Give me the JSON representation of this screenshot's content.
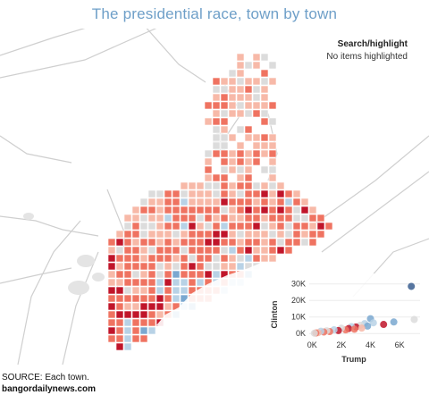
{
  "title": "The presidential race, town by town",
  "search": {
    "label": "Search/highlight",
    "value": "No items highlighted"
  },
  "colors": {
    "trump_strong": "#c0152a",
    "trump_mid": "#ef7361",
    "trump_light": "#f7b9a8",
    "neutral": "#dcdcdc",
    "clinton_light": "#b8d2e6",
    "clinton_mid": "#7aa8d0",
    "clinton_strong": "#3a5e8f",
    "title": "#6e9fc8"
  },
  "chart_data": {
    "type": "scatter",
    "xlabel": "Trump",
    "ylabel": "Clinton",
    "x_ticks": [
      "0K",
      "2K",
      "4K",
      "6K"
    ],
    "y_ticks": [
      "0K",
      "10K",
      "20K",
      "30K"
    ],
    "xlim": [
      -200,
      7400
    ],
    "ylim": [
      -1500,
      32000
    ],
    "points": [
      {
        "x": 6800,
        "y": 28500,
        "c": "clinton_strong"
      },
      {
        "x": 7000,
        "y": 8500,
        "c": "neutral"
      },
      {
        "x": 5600,
        "y": 7000,
        "c": "clinton_mid"
      },
      {
        "x": 4900,
        "y": 5500,
        "c": "trump_strong"
      },
      {
        "x": 4000,
        "y": 9000,
        "c": "clinton_mid"
      },
      {
        "x": 4200,
        "y": 6500,
        "c": "clinton_light"
      },
      {
        "x": 3600,
        "y": 6000,
        "c": "clinton_light"
      },
      {
        "x": 3300,
        "y": 5000,
        "c": "neutral"
      },
      {
        "x": 3000,
        "y": 4000,
        "c": "trump_strong"
      },
      {
        "x": 2700,
        "y": 4200,
        "c": "clinton_light"
      },
      {
        "x": 2500,
        "y": 3000,
        "c": "trump_strong"
      },
      {
        "x": 2300,
        "y": 2200,
        "c": "trump_mid"
      },
      {
        "x": 2000,
        "y": 3200,
        "c": "neutral"
      },
      {
        "x": 1800,
        "y": 1800,
        "c": "trump_strong"
      },
      {
        "x": 1500,
        "y": 2300,
        "c": "clinton_light"
      },
      {
        "x": 1200,
        "y": 1200,
        "c": "trump_mid"
      },
      {
        "x": 1000,
        "y": 1700,
        "c": "neutral"
      },
      {
        "x": 800,
        "y": 900,
        "c": "trump_mid"
      },
      {
        "x": 600,
        "y": 1400,
        "c": "clinton_light"
      },
      {
        "x": 400,
        "y": 500,
        "c": "trump_light"
      },
      {
        "x": 250,
        "y": 300,
        "c": "trump_mid"
      },
      {
        "x": 150,
        "y": 200,
        "c": "neutral"
      },
      {
        "x": 3800,
        "y": 4500,
        "c": "clinton_mid"
      },
      {
        "x": 2900,
        "y": 2600,
        "c": "trump_mid"
      },
      {
        "x": 3400,
        "y": 3300,
        "c": "trump_light"
      }
    ]
  },
  "footer": {
    "source": "SOURCE: Each town.",
    "site": "bangordailynews.com"
  }
}
